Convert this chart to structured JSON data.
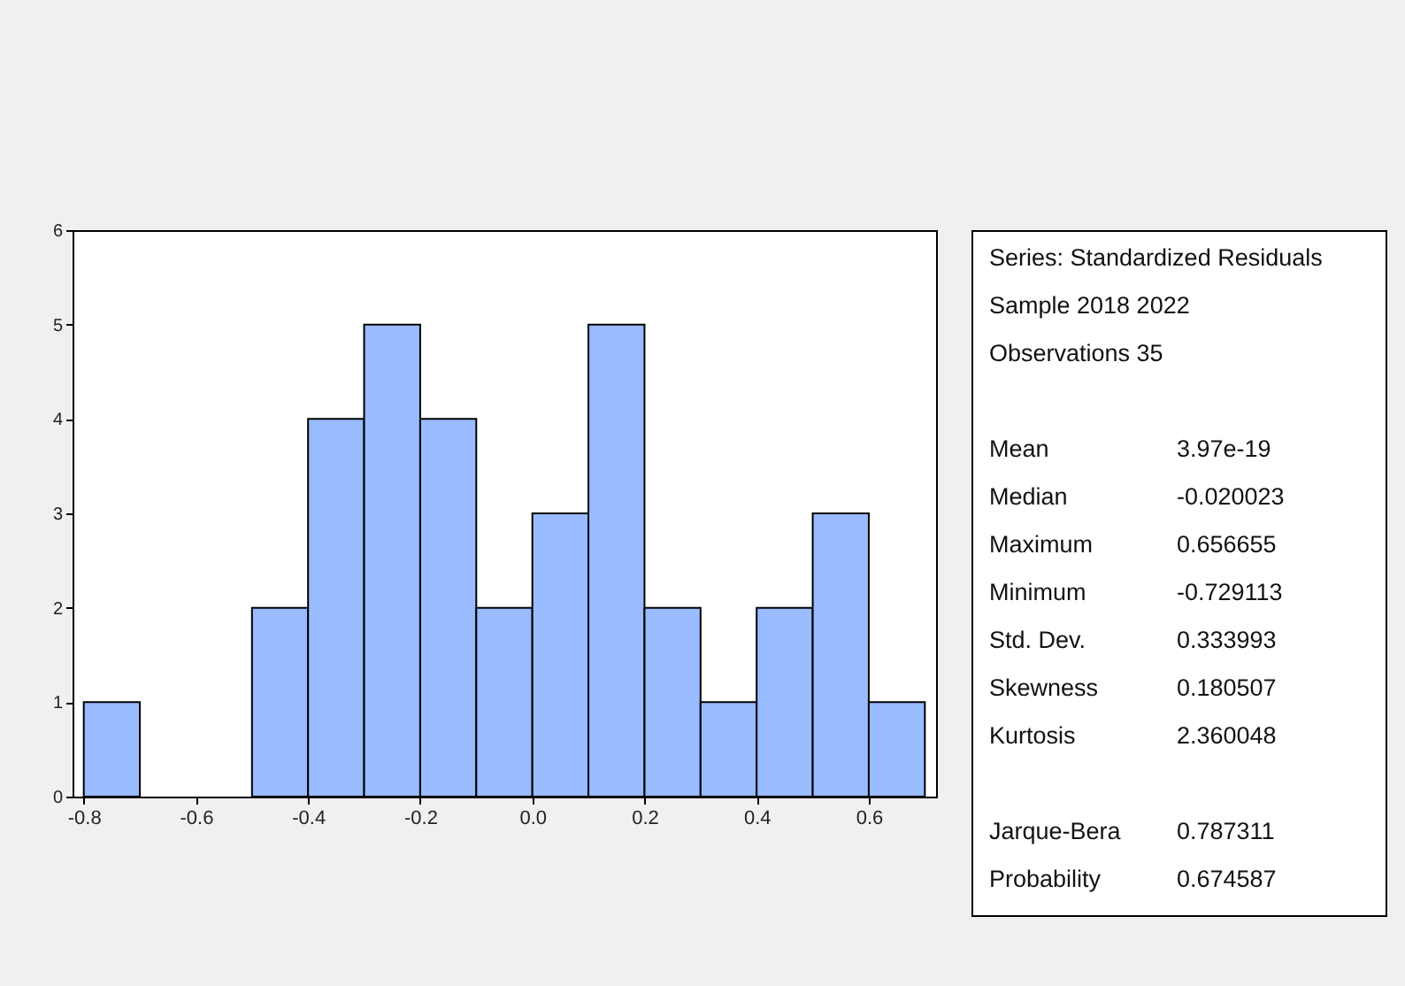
{
  "chart_data": [
    {
      "type": "histogram",
      "bins": [
        -0.8,
        -0.7,
        -0.6,
        -0.5,
        -0.4,
        -0.3,
        -0.2,
        -0.1,
        0.0,
        0.1,
        0.2,
        0.3,
        0.4,
        0.5,
        0.6,
        0.7
      ],
      "values": [
        1,
        0,
        0,
        2,
        4,
        5,
        4,
        2,
        3,
        5,
        2,
        1,
        2,
        3,
        1
      ],
      "color": "#99bbff",
      "xlim": [
        -0.82,
        0.72
      ],
      "ylim": [
        0,
        6
      ],
      "xticks": [
        -0.8,
        -0.6,
        -0.4,
        -0.2,
        {
          "value": 0,
          "label": "0.0"
        },
        0.2,
        0.4,
        0.6
      ],
      "yticks": [
        0,
        1,
        2,
        3,
        4,
        5,
        6
      ]
    },
    {
      "type": "other",
      "annotations": [
        "Series: Standardized Residuals",
        "Sample 2018 2022",
        "Observations 35",
        "Mean",
        "3.97e-19",
        "Median",
        "-0.020023",
        "Maximum",
        "0.656655",
        "Minimum",
        "-0.729113",
        "Std. Dev.",
        "0.333993",
        "Skewness",
        "0.180507",
        "Kurtosis",
        "2.360048",
        "Jarque-Bera",
        "0.787311",
        "Probability",
        "0.674587"
      ]
    }
  ]
}
